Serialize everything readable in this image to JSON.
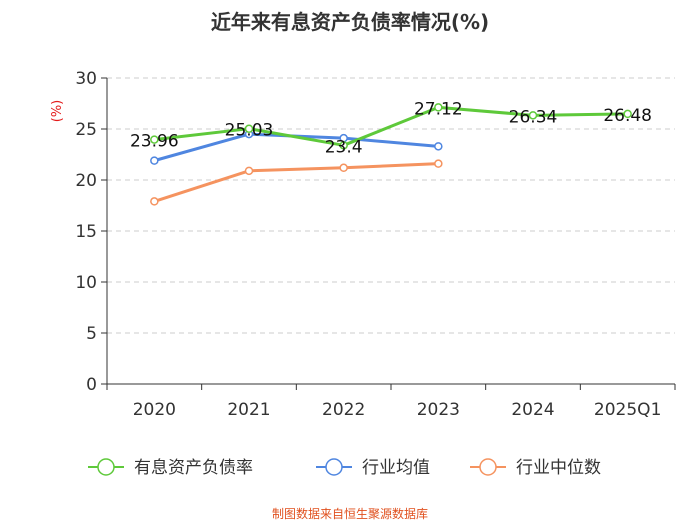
{
  "chart_data": {
    "type": "line",
    "title": "近年来有息资产负债率情况(%)",
    "y_unit": "(%)",
    "categories": [
      "2020",
      "2021",
      "2022",
      "2023",
      "2024",
      "2025Q1"
    ],
    "ylim": [
      0,
      30
    ],
    "yticks": [
      "0",
      "5",
      "10",
      "15",
      "20",
      "25",
      "30"
    ],
    "grid": true,
    "legend_position": "bottom",
    "series": [
      {
        "name": "有息资产负债率",
        "color": "#5ec93a",
        "values": [
          23.96,
          25.03,
          23.4,
          27.12,
          26.34,
          26.48
        ],
        "data_labels": [
          "23.96",
          "25.03",
          "23.4",
          "27.12",
          "26.34",
          "26.48"
        ]
      },
      {
        "name": "行业均值",
        "color": "#4f86e0",
        "values": [
          21.9,
          24.5,
          24.1,
          23.3,
          null,
          null
        ]
      },
      {
        "name": "行业中位数",
        "color": "#f5935f",
        "values": [
          17.9,
          20.9,
          21.2,
          21.6,
          null,
          null
        ]
      }
    ],
    "source": "制图数据来自恒生聚源数据库"
  }
}
